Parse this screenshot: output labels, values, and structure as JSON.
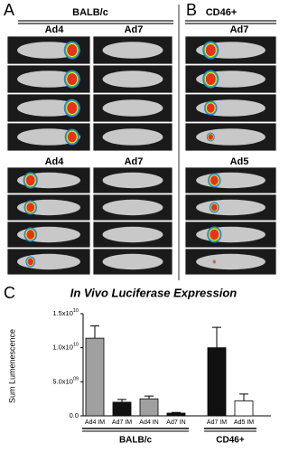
{
  "panels": {
    "A": {
      "label": "A",
      "group": "BALB/c",
      "top": [
        "Ad4",
        "Ad7"
      ],
      "bottom": [
        "Ad4",
        "Ad7"
      ]
    },
    "B": {
      "label": "B",
      "group": "CD46+",
      "top": "Ad7",
      "bottom": "Ad5"
    },
    "C": {
      "label": "C"
    }
  },
  "chart_data": {
    "type": "bar",
    "title": "In Vivo Luciferase Expression",
    "y_label": "Sum Lumenescence",
    "categories": [
      "Ad4 IM",
      "Ad7 IM",
      "Ad4 IN",
      "Ad7 IN",
      "Ad7 IM",
      "Ad5 IM"
    ],
    "values": [
      11400000000,
      2000000000,
      2500000000,
      400000000,
      10000000000,
      2200000000
    ],
    "errors": [
      1800000000,
      400000000,
      400000000,
      100000000,
      3000000000,
      1000000000
    ],
    "colors": [
      "#a0a0a0",
      "#111111",
      "#a0a0a0",
      "#111111",
      "#111111",
      "#ffffff"
    ],
    "group_labels": [
      "BALB/c",
      "CD46+"
    ],
    "ylim": [
      0,
      15000000000
    ],
    "yticks": [
      {
        "value": 0,
        "label": "0.0"
      },
      {
        "value": 5000000000,
        "label": "5.0x10",
        "sup": "09"
      },
      {
        "value": 10000000000,
        "label": "1.0x10",
        "sup": "10"
      },
      {
        "value": 15000000000,
        "label": "1.5x10",
        "sup": "10"
      }
    ]
  }
}
